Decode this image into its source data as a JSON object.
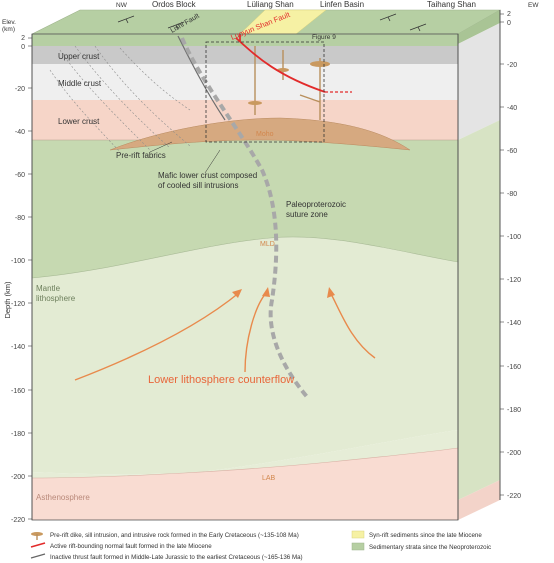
{
  "top_labels": {
    "nw": "NW",
    "ordos": "Ordos Block",
    "luliang": "Lüliang Shan",
    "linfen": "Linfen Basin",
    "taihang": "Taihang Shan",
    "ew": "EW"
  },
  "axis": {
    "elev_label": "Elev.\n(km)",
    "elev_line1": "Elev.",
    "elev_line2": "(km)",
    "depth_label": "Depth (km)",
    "left_ticks": [
      "2",
      "0",
      "-20",
      "-40",
      "-60",
      "-80",
      "-100",
      "-120",
      "-140",
      "-160",
      "-180",
      "-200",
      "-220"
    ],
    "right_ticks": [
      "2",
      "0",
      "-20",
      "-40",
      "-60",
      "-80",
      "-100",
      "-120",
      "-140",
      "-160",
      "-180",
      "-200",
      "-220"
    ]
  },
  "layers": {
    "upper_crust": "Upper crust",
    "middle_crust": "Middle crust",
    "lower_crust": "Lower crust",
    "mantle_line1": "Mantle",
    "mantle_line2": "lithosphere",
    "asthenosphere": "Asthenosphere",
    "moho": "Moho",
    "mld": "MLD",
    "lab": "LAB"
  },
  "annotations": {
    "lishi_fault": "Lishi Fault",
    "luoyun_fault": "Luoyun Shan Fault",
    "figure9": "Figure 9",
    "pre_rift": "Pre-rift fabrics",
    "mafic_line1": "Mafic lower crust composed",
    "mafic_line2": "of cooled sill intrusions",
    "suture_line1": "Paleoproterozoic",
    "suture_line2": "suture zone",
    "counterflow": "Lower lithosphere counterflow"
  },
  "legend": {
    "dike": "Pre-rift dike, sill intrusion, and intrusive rock formed in the Early Cretaceous (~135-108 Ma)",
    "active_fault": "Active rift-bounding normal fault formed in the late Miocene",
    "inactive_fault": "Inactive thrust fault formed in Middle-Late Jurassic to the earliest Cretaceous (~165-136 Ma)",
    "syn_rift": "Syn-rift sediments since the late Miocene",
    "sedimentary": "Sedimentary strata since the Neoproterozoic"
  },
  "colors": {
    "sediment_green": "#b6cfa3",
    "syn_rift_yellow": "#f6f1a4",
    "upper_crust": "#c9c9c9",
    "middle_crust": "#efefef",
    "lower_crust": "#f6d5c8",
    "mantle_upper": "#cbdcb6",
    "mantle_lower": "#e3ebd3",
    "asthenosphere": "#f9dcd2",
    "active_fault": "#e22b2b",
    "counterflow": "#e88a4c",
    "intrusion": "#c9995f"
  }
}
